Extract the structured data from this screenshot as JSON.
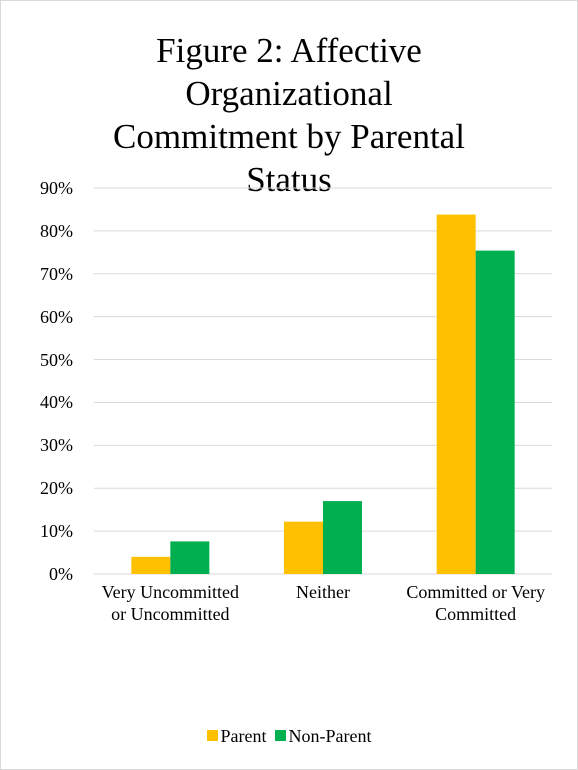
{
  "chart_data": {
    "type": "bar",
    "title": "Figure 2: Affective Organizational Commitment by Parental Status",
    "categories": [
      "Very Uncommitted or Uncommitted",
      "Neither",
      "Committed or Very Committed"
    ],
    "series": [
      {
        "name": "Parent",
        "color": "#ffc000",
        "values": [
          4,
          12.2,
          83.8
        ]
      },
      {
        "name": "Non-Parent",
        "color": "#00b050",
        "values": [
          7.6,
          17,
          75.4
        ]
      }
    ],
    "ylim": [
      0,
      90
    ],
    "yticks": [
      {
        "value": 0,
        "label": "0%"
      },
      {
        "value": 10,
        "label": "10%"
      },
      {
        "value": 20,
        "label": "20%"
      },
      {
        "value": 30,
        "label": "30%"
      },
      {
        "value": 40,
        "label": "40%"
      },
      {
        "value": 50,
        "label": "50%"
      },
      {
        "value": 60,
        "label": "60%"
      },
      {
        "value": 70,
        "label": "70%"
      },
      {
        "value": 80,
        "label": "80%"
      },
      {
        "value": 90,
        "label": "90%"
      }
    ],
    "grid": true,
    "legend": "bottom"
  }
}
